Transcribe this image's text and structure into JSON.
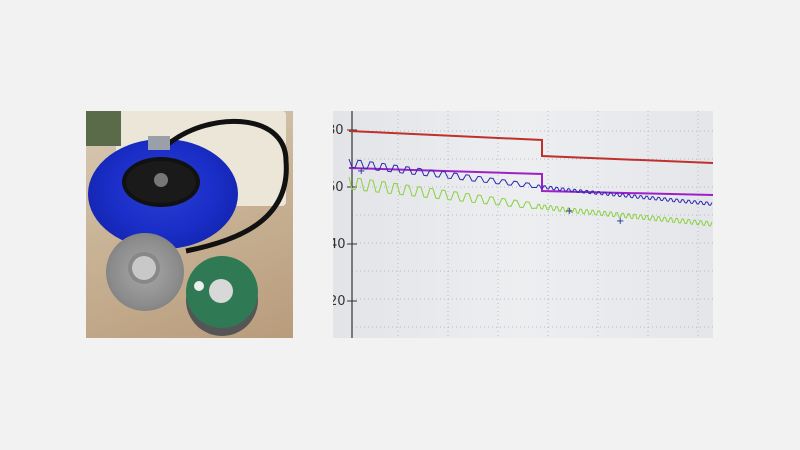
{
  "photos": [
    {
      "subject": "disassembled blower fan motor with controller board"
    },
    {
      "subject": "photo of emission test plot on monitor"
    }
  ],
  "plot_photo": {
    "y_tick_labels": [
      "80",
      "60",
      "40",
      "20"
    ],
    "line_colors": {
      "limit_peak": "#c0302c",
      "limit_avg": "#a020c8",
      "trace_peak": "#2a2ab0",
      "trace_avg": "#8cd040"
    }
  }
}
